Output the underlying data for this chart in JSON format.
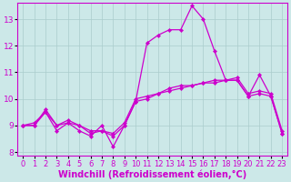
{
  "xlabel": "Windchill (Refroidissement éolien,°C)",
  "background_color": "#cce8e8",
  "line_color": "#cc00cc",
  "grid_color": "#aacccc",
  "x": [
    0,
    1,
    2,
    3,
    4,
    5,
    6,
    7,
    8,
    9,
    10,
    11,
    12,
    13,
    14,
    15,
    16,
    17,
    18,
    19,
    20,
    21,
    22,
    23
  ],
  "line1": [
    9.0,
    9.1,
    9.5,
    8.8,
    9.1,
    8.8,
    8.6,
    9.0,
    8.2,
    9.0,
    9.9,
    12.1,
    12.4,
    12.6,
    12.6,
    13.5,
    13.0,
    11.8,
    10.7,
    10.7,
    10.1,
    10.9,
    10.1,
    8.7
  ],
  "line2": [
    9.0,
    9.0,
    9.5,
    9.0,
    9.1,
    9.0,
    8.7,
    8.8,
    8.6,
    9.0,
    9.9,
    10.0,
    10.2,
    10.3,
    10.4,
    10.5,
    10.6,
    10.6,
    10.7,
    10.7,
    10.1,
    10.2,
    10.1,
    8.7
  ],
  "line3": [
    9.0,
    9.0,
    9.6,
    9.0,
    9.2,
    9.0,
    8.8,
    8.8,
    8.7,
    9.1,
    10.0,
    10.1,
    10.2,
    10.4,
    10.5,
    10.5,
    10.6,
    10.7,
    10.7,
    10.8,
    10.2,
    10.3,
    10.2,
    8.8
  ],
  "xlim": [
    -0.5,
    23.5
  ],
  "ylim": [
    7.85,
    13.6
  ],
  "yticks": [
    8,
    9,
    10,
    11,
    12,
    13
  ],
  "xticks": [
    0,
    1,
    2,
    3,
    4,
    5,
    6,
    7,
    8,
    9,
    10,
    11,
    12,
    13,
    14,
    15,
    16,
    17,
    18,
    19,
    20,
    21,
    22,
    23
  ],
  "xlabel_fontsize": 7.0,
  "tick_fontsize": 6.5,
  "line_width": 0.9,
  "marker_size": 2.2
}
